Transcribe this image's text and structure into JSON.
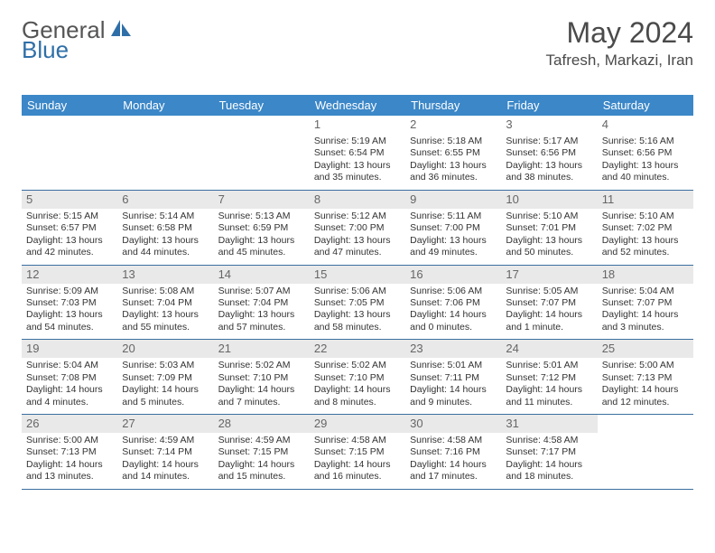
{
  "logo": {
    "general": "General",
    "blue": "Blue"
  },
  "title": "May 2024",
  "location": "Tafresh, Markazi, Iran",
  "colors": {
    "header_bg": "#3b87c8",
    "header_fg": "#ffffff",
    "rule": "#3b6fa0",
    "shade": "#e9e9e9",
    "logo_blue": "#2f6fa8",
    "text": "#333333"
  },
  "day_headers": [
    "Sunday",
    "Monday",
    "Tuesday",
    "Wednesday",
    "Thursday",
    "Friday",
    "Saturday"
  ],
  "weeks": [
    {
      "shaded": false,
      "days": [
        null,
        null,
        null,
        {
          "n": "1",
          "sunrise": "5:19 AM",
          "sunset": "6:54 PM",
          "daylight": "13 hours and 35 minutes."
        },
        {
          "n": "2",
          "sunrise": "5:18 AM",
          "sunset": "6:55 PM",
          "daylight": "13 hours and 36 minutes."
        },
        {
          "n": "3",
          "sunrise": "5:17 AM",
          "sunset": "6:56 PM",
          "daylight": "13 hours and 38 minutes."
        },
        {
          "n": "4",
          "sunrise": "5:16 AM",
          "sunset": "6:56 PM",
          "daylight": "13 hours and 40 minutes."
        }
      ]
    },
    {
      "shaded": true,
      "days": [
        {
          "n": "5",
          "sunrise": "5:15 AM",
          "sunset": "6:57 PM",
          "daylight": "13 hours and 42 minutes."
        },
        {
          "n": "6",
          "sunrise": "5:14 AM",
          "sunset": "6:58 PM",
          "daylight": "13 hours and 44 minutes."
        },
        {
          "n": "7",
          "sunrise": "5:13 AM",
          "sunset": "6:59 PM",
          "daylight": "13 hours and 45 minutes."
        },
        {
          "n": "8",
          "sunrise": "5:12 AM",
          "sunset": "7:00 PM",
          "daylight": "13 hours and 47 minutes."
        },
        {
          "n": "9",
          "sunrise": "5:11 AM",
          "sunset": "7:00 PM",
          "daylight": "13 hours and 49 minutes."
        },
        {
          "n": "10",
          "sunrise": "5:10 AM",
          "sunset": "7:01 PM",
          "daylight": "13 hours and 50 minutes."
        },
        {
          "n": "11",
          "sunrise": "5:10 AM",
          "sunset": "7:02 PM",
          "daylight": "13 hours and 52 minutes."
        }
      ]
    },
    {
      "shaded": true,
      "days": [
        {
          "n": "12",
          "sunrise": "5:09 AM",
          "sunset": "7:03 PM",
          "daylight": "13 hours and 54 minutes."
        },
        {
          "n": "13",
          "sunrise": "5:08 AM",
          "sunset": "7:04 PM",
          "daylight": "13 hours and 55 minutes."
        },
        {
          "n": "14",
          "sunrise": "5:07 AM",
          "sunset": "7:04 PM",
          "daylight": "13 hours and 57 minutes."
        },
        {
          "n": "15",
          "sunrise": "5:06 AM",
          "sunset": "7:05 PM",
          "daylight": "13 hours and 58 minutes."
        },
        {
          "n": "16",
          "sunrise": "5:06 AM",
          "sunset": "7:06 PM",
          "daylight": "14 hours and 0 minutes."
        },
        {
          "n": "17",
          "sunrise": "5:05 AM",
          "sunset": "7:07 PM",
          "daylight": "14 hours and 1 minute."
        },
        {
          "n": "18",
          "sunrise": "5:04 AM",
          "sunset": "7:07 PM",
          "daylight": "14 hours and 3 minutes."
        }
      ]
    },
    {
      "shaded": true,
      "days": [
        {
          "n": "19",
          "sunrise": "5:04 AM",
          "sunset": "7:08 PM",
          "daylight": "14 hours and 4 minutes."
        },
        {
          "n": "20",
          "sunrise": "5:03 AM",
          "sunset": "7:09 PM",
          "daylight": "14 hours and 5 minutes."
        },
        {
          "n": "21",
          "sunrise": "5:02 AM",
          "sunset": "7:10 PM",
          "daylight": "14 hours and 7 minutes."
        },
        {
          "n": "22",
          "sunrise": "5:02 AM",
          "sunset": "7:10 PM",
          "daylight": "14 hours and 8 minutes."
        },
        {
          "n": "23",
          "sunrise": "5:01 AM",
          "sunset": "7:11 PM",
          "daylight": "14 hours and 9 minutes."
        },
        {
          "n": "24",
          "sunrise": "5:01 AM",
          "sunset": "7:12 PM",
          "daylight": "14 hours and 11 minutes."
        },
        {
          "n": "25",
          "sunrise": "5:00 AM",
          "sunset": "7:13 PM",
          "daylight": "14 hours and 12 minutes."
        }
      ]
    },
    {
      "shaded": true,
      "days": [
        {
          "n": "26",
          "sunrise": "5:00 AM",
          "sunset": "7:13 PM",
          "daylight": "14 hours and 13 minutes."
        },
        {
          "n": "27",
          "sunrise": "4:59 AM",
          "sunset": "7:14 PM",
          "daylight": "14 hours and 14 minutes."
        },
        {
          "n": "28",
          "sunrise": "4:59 AM",
          "sunset": "7:15 PM",
          "daylight": "14 hours and 15 minutes."
        },
        {
          "n": "29",
          "sunrise": "4:58 AM",
          "sunset": "7:15 PM",
          "daylight": "14 hours and 16 minutes."
        },
        {
          "n": "30",
          "sunrise": "4:58 AM",
          "sunset": "7:16 PM",
          "daylight": "14 hours and 17 minutes."
        },
        {
          "n": "31",
          "sunrise": "4:58 AM",
          "sunset": "7:17 PM",
          "daylight": "14 hours and 18 minutes."
        },
        null
      ]
    }
  ],
  "labels": {
    "sunrise": "Sunrise:",
    "sunset": "Sunset:",
    "daylight": "Daylight:"
  }
}
